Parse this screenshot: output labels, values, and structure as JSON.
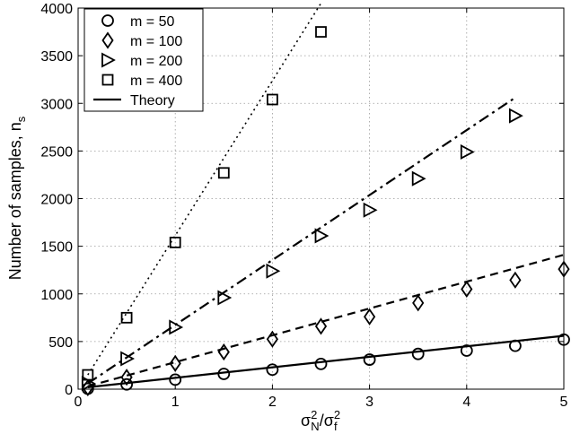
{
  "chart_data": {
    "type": "scatter",
    "title": "",
    "xlabel": {
      "base": "σ",
      "sup1": "2",
      "sub1": "N",
      "slash": "/",
      "base2": "σ",
      "sup2": "2",
      "sub2": "f"
    },
    "ylabel": {
      "text": "Number of samples, n",
      "sub": "s"
    },
    "xlim": [
      0,
      5
    ],
    "ylim": [
      0,
      4000
    ],
    "xticks": [
      0,
      1,
      2,
      3,
      4,
      5
    ],
    "yticks": [
      0,
      500,
      1000,
      1500,
      2000,
      2500,
      3000,
      3500,
      4000
    ],
    "grid": true,
    "legend_position": "top-left",
    "series": [
      {
        "name": "m = 50",
        "marker": "circle",
        "x": [
          0.1,
          0.5,
          1,
          1.5,
          2,
          2.5,
          3,
          3.5,
          4,
          4.5,
          5
        ],
        "y": [
          5,
          50,
          100,
          160,
          205,
          265,
          310,
          370,
          405,
          455,
          520
        ]
      },
      {
        "name": "m = 100",
        "marker": "diamond",
        "x": [
          0.1,
          0.5,
          1,
          1.5,
          2,
          2.5,
          3,
          3.5,
          4,
          4.5,
          5
        ],
        "y": [
          15,
          125,
          270,
          390,
          525,
          660,
          760,
          905,
          1050,
          1145,
          1260
        ]
      },
      {
        "name": "m = 200",
        "marker": "triangle-right",
        "x": [
          0.1,
          0.5,
          1,
          1.5,
          2,
          2.5,
          3,
          3.5,
          4,
          4.5
        ],
        "y": [
          60,
          320,
          650,
          960,
          1240,
          1610,
          1880,
          2210,
          2490,
          2870
        ]
      },
      {
        "name": "m = 400",
        "marker": "square",
        "x": [
          0.1,
          0.5,
          1,
          1.5,
          2,
          2.5
        ],
        "y": [
          150,
          750,
          1540,
          2270,
          3040,
          3750
        ]
      },
      {
        "name": "Theory",
        "marker": "line"
      }
    ],
    "theory_lines": [
      {
        "group": "m = 50",
        "style": "solid",
        "x": [
          0.1,
          5
        ],
        "y": [
          20,
          560
        ]
      },
      {
        "group": "m = 100",
        "style": "dashed",
        "x": [
          0.1,
          5
        ],
        "y": [
          30,
          1410
        ]
      },
      {
        "group": "m = 200",
        "style": "dashdot",
        "x": [
          0.1,
          4.5
        ],
        "y": [
          60,
          3060
        ]
      },
      {
        "group": "m = 400",
        "style": "dotted",
        "x": [
          0.1,
          2.5
        ],
        "y": [
          150,
          4050
        ]
      }
    ]
  }
}
